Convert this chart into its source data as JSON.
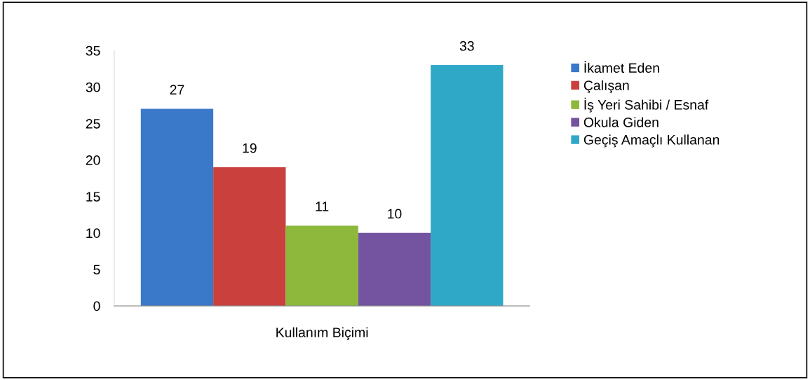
{
  "chart_data": {
    "type": "bar",
    "categories": [
      "Kullanım Biçimi"
    ],
    "series": [
      {
        "name": "İkamet Eden",
        "color": "#3a78c9",
        "values": [
          27
        ]
      },
      {
        "name": "Çalışan",
        "color": "#c9403c",
        "values": [
          19
        ]
      },
      {
        "name": "İş Yeri Sahibi / Esnaf",
        "color": "#8db83c",
        "values": [
          11
        ]
      },
      {
        "name": "Okula Giden",
        "color": "#7453a0",
        "values": [
          10
        ]
      },
      {
        "name": "Geçiş Amaçlı Kullanan",
        "color": "#2fa8c8",
        "values": [
          33
        ]
      }
    ],
    "ylim": [
      0,
      35
    ],
    "yticks": [
      0,
      5,
      10,
      15,
      20,
      25,
      30,
      35
    ],
    "data_labels": true,
    "legend": "right",
    "grid": false
  }
}
